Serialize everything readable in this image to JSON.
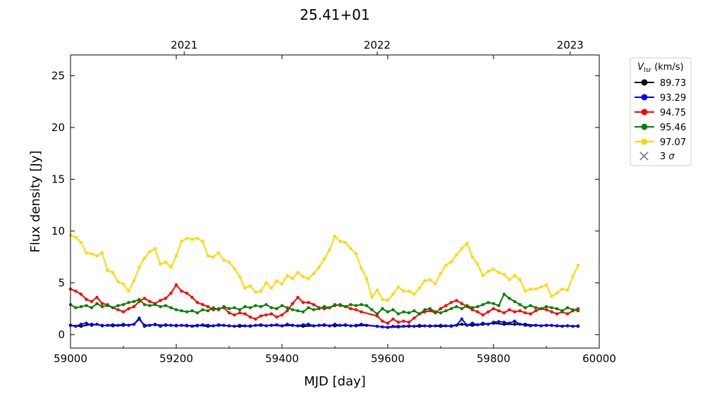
{
  "chart_data": {
    "type": "line",
    "title": "25.41+01",
    "xlabel": "MJD [day]",
    "ylabel": "Flux density [Jy]",
    "xlim": [
      59000,
      60000
    ],
    "ylim": [
      -1.3,
      27
    ],
    "x_ticks": [
      59000,
      59200,
      59400,
      59600,
      59800,
      60000
    ],
    "y_ticks": [
      0,
      5,
      10,
      15,
      20,
      25
    ],
    "top_axis": {
      "ticks": [
        {
          "label": "2021",
          "mjd": 59215
        },
        {
          "label": "2022",
          "mjd": 59580
        },
        {
          "label": "2023",
          "mjd": 59945
        }
      ]
    },
    "grid": false,
    "legend": {
      "placement": "outside-right",
      "title": "V_lsr (km/s)",
      "title_main": "V",
      "title_sub": "lsr",
      "title_rest": " (km/s)",
      "limit_label": "3 σ",
      "limit_label_main": "3 ",
      "limit_label_sym": "σ"
    },
    "series": [
      {
        "name": "89.73",
        "color": "#000000",
        "x": [
          59000,
          59020,
          59040,
          59060,
          59080,
          59100,
          59120,
          59130,
          59140,
          59160,
          59180,
          59200,
          59220,
          59240,
          59260,
          59280,
          59300,
          59320,
          59340,
          59360,
          59380,
          59400,
          59420,
          59440,
          59460,
          59480,
          59500,
          59520,
          59540,
          59560,
          59580,
          59600,
          59620,
          59640,
          59660,
          59680,
          59700,
          59720,
          59740,
          59760,
          59780,
          59800,
          59820,
          59840,
          59860,
          59880,
          59900,
          59920,
          59940,
          59960
        ],
        "y": [
          0.9,
          0.8,
          1.0,
          0.9,
          0.85,
          0.9,
          1.0,
          1.5,
          0.9,
          0.95,
          0.9,
          0.9,
          0.85,
          0.9,
          0.8,
          0.9,
          0.85,
          0.8,
          0.85,
          0.9,
          0.9,
          0.85,
          0.9,
          0.8,
          0.85,
          0.9,
          0.85,
          0.9,
          0.85,
          0.9,
          0.8,
          0.7,
          0.75,
          0.8,
          0.8,
          0.85,
          0.8,
          0.85,
          1.0,
          0.9,
          1.0,
          1.1,
          1.0,
          1.0,
          1.0,
          0.9,
          0.9,
          0.85,
          0.85,
          0.8
        ]
      },
      {
        "name": "93.29",
        "color": "#0000ff",
        "x": [
          59000,
          59010,
          59020,
          59030,
          59040,
          59050,
          59060,
          59070,
          59080,
          59090,
          59100,
          59110,
          59120,
          59130,
          59140,
          59150,
          59160,
          59170,
          59180,
          59190,
          59200,
          59210,
          59220,
          59230,
          59240,
          59250,
          59260,
          59270,
          59280,
          59290,
          59300,
          59310,
          59320,
          59330,
          59340,
          59350,
          59360,
          59370,
          59380,
          59390,
          59400,
          59410,
          59420,
          59430,
          59440,
          59450,
          59460,
          59470,
          59480,
          59490,
          59500,
          59510,
          59520,
          59530,
          59540,
          59550,
          59580,
          59590,
          59600,
          59610,
          59620,
          59630,
          59640,
          59650,
          59660,
          59670,
          59680,
          59690,
          59700,
          59710,
          59720,
          59730,
          59740,
          59750,
          59760,
          59770,
          59780,
          59790,
          59800,
          59810,
          59820,
          59830,
          59840,
          59850,
          59860,
          59870,
          59880,
          59890,
          59900,
          59910,
          59920,
          59930,
          59940,
          59950,
          59960
        ],
        "y": [
          0.9,
          0.8,
          1.0,
          1.1,
          0.9,
          1.0,
          0.85,
          0.9,
          0.95,
          0.9,
          1.0,
          0.9,
          1.0,
          1.6,
          0.8,
          0.9,
          1.0,
          0.8,
          0.95,
          0.9,
          0.85,
          0.9,
          0.9,
          0.8,
          0.85,
          0.95,
          0.9,
          0.85,
          0.95,
          0.9,
          0.85,
          0.8,
          0.9,
          0.85,
          0.8,
          0.9,
          0.95,
          0.85,
          0.9,
          0.95,
          0.85,
          1.0,
          0.9,
          0.85,
          0.95,
          1.0,
          0.85,
          0.9,
          0.95,
          0.85,
          1.0,
          0.9,
          0.95,
          0.85,
          0.9,
          1.0,
          0.8,
          0.75,
          0.7,
          0.8,
          0.8,
          0.8,
          0.85,
          0.8,
          0.9,
          0.85,
          0.8,
          0.85,
          0.9,
          0.85,
          0.8,
          0.9,
          1.5,
          0.9,
          1.1,
          0.95,
          1.1,
          1.0,
          1.2,
          1.25,
          1.2,
          1.1,
          1.3,
          1.0,
          0.9,
          0.85,
          0.9,
          0.85,
          0.9,
          0.9,
          0.85,
          0.8,
          0.85,
          0.8,
          0.85
        ]
      },
      {
        "name": "94.75",
        "color": "#ff0000",
        "x": [
          59000,
          59010,
          59020,
          59030,
          59040,
          59050,
          59060,
          59070,
          59080,
          59090,
          59100,
          59110,
          59120,
          59130,
          59140,
          59150,
          59160,
          59170,
          59180,
          59190,
          59200,
          59210,
          59220,
          59230,
          59240,
          59250,
          59260,
          59270,
          59280,
          59290,
          59300,
          59310,
          59320,
          59330,
          59340,
          59350,
          59360,
          59370,
          59380,
          59390,
          59400,
          59410,
          59420,
          59430,
          59440,
          59450,
          59460,
          59470,
          59480,
          59490,
          59500,
          59510,
          59520,
          59530,
          59540,
          59550,
          59580,
          59590,
          59600,
          59610,
          59620,
          59630,
          59640,
          59650,
          59660,
          59670,
          59680,
          59690,
          59700,
          59710,
          59720,
          59730,
          59740,
          59750,
          59760,
          59770,
          59780,
          59790,
          59800,
          59810,
          59820,
          59830,
          59840,
          59850,
          59860,
          59870,
          59880,
          59890,
          59900,
          59910,
          59920,
          59930,
          59940,
          59950,
          59960
        ],
        "y": [
          4.4,
          4.2,
          3.9,
          3.4,
          3.2,
          3.6,
          3.0,
          2.9,
          2.6,
          2.4,
          2.2,
          2.5,
          2.7,
          3.2,
          3.5,
          3.2,
          3.0,
          3.3,
          3.5,
          4.0,
          4.8,
          4.2,
          4.0,
          3.6,
          3.1,
          2.9,
          2.7,
          2.4,
          2.5,
          2.6,
          2.1,
          1.9,
          2.1,
          2.0,
          1.7,
          1.5,
          1.8,
          1.9,
          2.0,
          1.7,
          1.9,
          2.3,
          3.0,
          3.6,
          3.1,
          3.1,
          2.9,
          2.6,
          2.5,
          2.6,
          2.8,
          2.9,
          2.7,
          2.5,
          2.4,
          2.2,
          1.8,
          1.3,
          1.1,
          1.5,
          1.2,
          1.3,
          1.2,
          1.6,
          2.0,
          2.2,
          2.3,
          2.1,
          2.5,
          2.8,
          3.1,
          3.3,
          3.0,
          2.7,
          2.4,
          2.2,
          1.9,
          2.2,
          2.5,
          2.3,
          2.1,
          2.4,
          2.2,
          2.3,
          2.1,
          2.0,
          2.3,
          2.5,
          2.4,
          2.2,
          2.0,
          2.2,
          2.0,
          2.3,
          2.5
        ]
      },
      {
        "name": "95.46",
        "color": "#008000",
        "x": [
          59000,
          59010,
          59020,
          59030,
          59040,
          59050,
          59060,
          59070,
          59080,
          59090,
          59100,
          59110,
          59120,
          59130,
          59140,
          59150,
          59160,
          59170,
          59180,
          59190,
          59200,
          59210,
          59220,
          59230,
          59240,
          59250,
          59260,
          59270,
          59280,
          59290,
          59300,
          59310,
          59320,
          59330,
          59340,
          59350,
          59360,
          59370,
          59380,
          59390,
          59400,
          59410,
          59420,
          59430,
          59440,
          59450,
          59460,
          59470,
          59480,
          59490,
          59500,
          59510,
          59520,
          59530,
          59540,
          59550,
          59560,
          59570,
          59580,
          59590,
          59600,
          59610,
          59620,
          59630,
          59640,
          59650,
          59660,
          59670,
          59680,
          59690,
          59700,
          59710,
          59720,
          59730,
          59740,
          59750,
          59760,
          59770,
          59780,
          59790,
          59800,
          59810,
          59820,
          59830,
          59840,
          59850,
          59860,
          59870,
          59880,
          59890,
          59900,
          59910,
          59920,
          59930,
          59940,
          59950,
          59960
        ],
        "y": [
          2.9,
          2.6,
          2.7,
          2.8,
          2.6,
          3.0,
          2.7,
          2.8,
          2.6,
          2.8,
          2.9,
          3.1,
          3.2,
          3.4,
          2.9,
          2.8,
          2.9,
          2.7,
          2.8,
          2.6,
          2.4,
          2.3,
          2.2,
          2.3,
          2.1,
          2.4,
          2.3,
          2.6,
          2.4,
          2.7,
          2.5,
          2.6,
          2.4,
          2.7,
          2.6,
          2.8,
          2.7,
          2.9,
          2.6,
          2.5,
          2.8,
          2.6,
          2.4,
          2.3,
          2.2,
          2.6,
          2.4,
          2.5,
          2.7,
          2.6,
          2.9,
          2.8,
          2.7,
          2.9,
          2.8,
          2.9,
          2.8,
          2.4,
          2.0,
          2.5,
          2.2,
          2.4,
          2.0,
          2.2,
          2.1,
          2.3,
          2.0,
          2.4,
          2.5,
          2.2,
          2.1,
          2.3,
          2.5,
          2.7,
          2.5,
          2.8,
          2.6,
          2.7,
          2.9,
          3.1,
          3.0,
          2.8,
          3.9,
          3.5,
          3.2,
          2.9,
          2.6,
          2.8,
          2.6,
          2.5,
          2.7,
          2.6,
          2.5,
          2.3,
          2.6,
          2.4,
          2.3
        ]
      },
      {
        "name": "97.07",
        "color": "#ffd700",
        "x": [
          59000,
          59010,
          59020,
          59030,
          59040,
          59050,
          59060,
          59070,
          59080,
          59090,
          59100,
          59110,
          59120,
          59130,
          59140,
          59150,
          59160,
          59170,
          59180,
          59190,
          59200,
          59210,
          59220,
          59230,
          59240,
          59250,
          59260,
          59270,
          59280,
          59290,
          59300,
          59310,
          59320,
          59330,
          59340,
          59350,
          59360,
          59370,
          59380,
          59390,
          59400,
          59410,
          59420,
          59430,
          59440,
          59450,
          59460,
          59470,
          59480,
          59490,
          59500,
          59510,
          59520,
          59530,
          59540,
          59550,
          59560,
          59570,
          59580,
          59590,
          59600,
          59610,
          59620,
          59630,
          59640,
          59650,
          59660,
          59670,
          59680,
          59690,
          59700,
          59710,
          59720,
          59730,
          59740,
          59750,
          59760,
          59770,
          59780,
          59790,
          59800,
          59810,
          59820,
          59830,
          59840,
          59850,
          59860,
          59870,
          59880,
          59890,
          59900,
          59910,
          59920,
          59930,
          59940,
          59950,
          59960
        ],
        "y": [
          9.6,
          9.4,
          8.9,
          7.9,
          7.8,
          7.6,
          7.9,
          6.2,
          6.0,
          5.1,
          4.9,
          4.2,
          5.2,
          6.5,
          7.4,
          8.0,
          8.3,
          6.8,
          7.0,
          6.5,
          7.6,
          9.0,
          9.3,
          9.2,
          9.3,
          9.0,
          7.6,
          7.5,
          7.9,
          7.2,
          7.0,
          6.4,
          5.6,
          4.5,
          4.7,
          4.1,
          4.2,
          5.0,
          4.5,
          5.2,
          4.9,
          5.7,
          5.4,
          6.0,
          5.6,
          5.4,
          5.9,
          6.5,
          7.3,
          8.2,
          9.5,
          9.0,
          8.9,
          8.3,
          7.8,
          6.4,
          5.4,
          3.6,
          4.3,
          3.4,
          3.3,
          3.9,
          4.6,
          4.2,
          4.2,
          3.9,
          4.5,
          5.2,
          5.3,
          4.9,
          5.9,
          6.7,
          7.0,
          7.7,
          8.3,
          8.8,
          7.5,
          6.8,
          5.7,
          6.1,
          6.3,
          6.0,
          5.8,
          5.3,
          5.7,
          5.3,
          4.2,
          4.4,
          4.4,
          4.6,
          4.8,
          3.7,
          4.0,
          4.4,
          4.3,
          5.6,
          6.7
        ]
      }
    ]
  }
}
